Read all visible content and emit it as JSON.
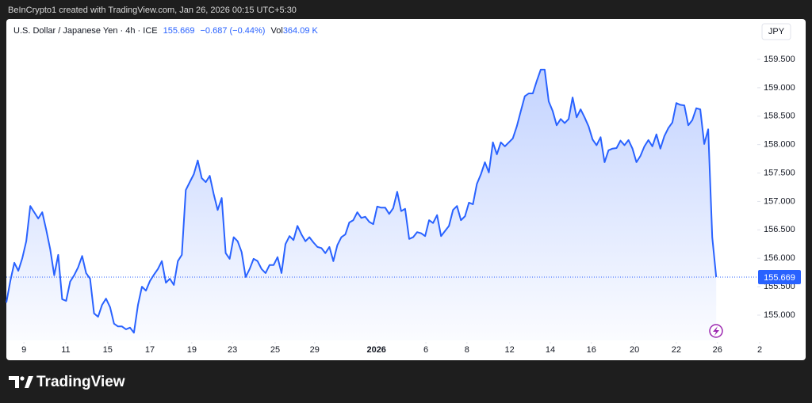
{
  "header": {
    "watermark": "BeInCrypto1 created with TradingView.com, Jan 26, 2026 00:15 UTC+5:30",
    "symbol": "U.S. Dollar / Japanese Yen · 4h · ICE",
    "change": "−0.687 (−0.44%)",
    "volume_label": "Vol",
    "volume": "364.09 K"
  },
  "footer": {
    "brand": "TradingView"
  },
  "chart_data": {
    "type": "area",
    "ylabel": "JPY",
    "color": "#2962ff",
    "values": [
      155.22,
      155.6,
      155.92,
      155.78,
      156.0,
      156.3,
      156.92,
      156.81,
      156.7,
      156.81,
      156.5,
      156.16,
      155.7,
      156.06,
      155.28,
      155.25,
      155.59,
      155.7,
      155.84,
      156.04,
      155.74,
      155.64,
      155.03,
      154.97,
      155.18,
      155.29,
      155.14,
      154.85,
      154.8,
      154.8,
      154.75,
      154.78,
      154.69,
      155.18,
      155.5,
      155.43,
      155.6,
      155.71,
      155.81,
      155.95,
      155.57,
      155.64,
      155.53,
      155.95,
      156.06,
      157.2,
      157.34,
      157.48,
      157.72,
      157.41,
      157.34,
      157.45,
      157.13,
      156.85,
      157.06,
      156.09,
      155.99,
      156.37,
      156.3,
      156.11,
      155.67,
      155.81,
      155.99,
      155.95,
      155.81,
      155.74,
      155.88,
      155.88,
      156.02,
      155.74,
      156.25,
      156.39,
      156.32,
      156.57,
      156.42,
      156.3,
      156.37,
      156.28,
      156.2,
      156.18,
      156.09,
      156.2,
      155.95,
      156.23,
      156.37,
      156.42,
      156.63,
      156.67,
      156.81,
      156.71,
      156.73,
      156.64,
      156.6,
      156.91,
      156.89,
      156.89,
      156.78,
      156.88,
      157.17,
      156.83,
      156.87,
      156.34,
      156.37,
      156.46,
      156.44,
      156.39,
      156.67,
      156.62,
      156.76,
      156.39,
      156.48,
      156.57,
      156.85,
      156.92,
      156.67,
      156.74,
      156.98,
      156.95,
      157.31,
      157.48,
      157.69,
      157.51,
      158.04,
      157.83,
      158.04,
      157.97,
      158.04,
      158.11,
      158.32,
      158.59,
      158.85,
      158.9,
      158.9,
      159.12,
      159.32,
      159.32,
      158.76,
      158.59,
      158.34,
      158.45,
      158.38,
      158.45,
      158.83,
      158.48,
      158.62,
      158.48,
      158.32,
      158.09,
      157.99,
      158.13,
      157.69,
      157.9,
      157.93,
      157.94,
      158.07,
      157.99,
      158.08,
      157.93,
      157.69,
      157.8,
      157.97,
      158.08,
      157.97,
      158.18,
      157.93,
      158.15,
      158.29,
      158.39,
      158.73,
      158.7,
      158.69,
      158.34,
      158.43,
      158.64,
      158.62,
      158.01,
      158.27,
      156.37,
      155.669
    ],
    "xlim": [
      0,
      188.3
    ],
    "xticks": [
      {
        "value": 4.4,
        "label": "9"
      },
      {
        "value": 14.9,
        "label": "11"
      },
      {
        "value": 25.4,
        "label": "15"
      },
      {
        "value": 36.0,
        "label": "17"
      },
      {
        "value": 46.5,
        "label": "19"
      },
      {
        "value": 56.7,
        "label": "23"
      },
      {
        "value": 67.4,
        "label": "25"
      },
      {
        "value": 77.3,
        "label": "29"
      },
      {
        "value": 92.8,
        "label": "2026"
      },
      {
        "value": 105.2,
        "label": "6"
      },
      {
        "value": 115.5,
        "label": "8"
      },
      {
        "value": 126.2,
        "label": "12"
      },
      {
        "value": 136.4,
        "label": "14"
      },
      {
        "value": 146.7,
        "label": "16"
      },
      {
        "value": 157.5,
        "label": "20"
      },
      {
        "value": 168.0,
        "label": "22"
      },
      {
        "value": 178.3,
        "label": "26"
      },
      {
        "value": 188.9,
        "label": "2"
      }
    ],
    "ylim": [
      154.554,
      159.848
    ],
    "yticks": [
      {
        "value": 155,
        "label": "155.000"
      },
      {
        "value": 155.5,
        "label": "155.500"
      },
      {
        "value": 156,
        "label": "156.000"
      },
      {
        "value": 156.5,
        "label": "156.500"
      },
      {
        "value": 157,
        "label": "157.000"
      },
      {
        "value": 157.5,
        "label": "157.500"
      },
      {
        "value": 158,
        "label": "158.000"
      },
      {
        "value": 158.5,
        "label": "158.500"
      },
      {
        "value": 159,
        "label": "159.000"
      },
      {
        "value": 159.5,
        "label": "159.500"
      }
    ],
    "grid": false
  }
}
